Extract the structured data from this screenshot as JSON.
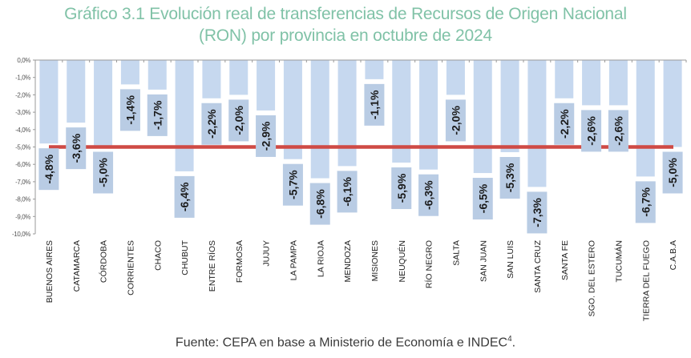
{
  "title_line1": "Gráfico 3.1 Evolución real de transferencias de Recursos de Origen Nacional",
  "title_line2": "(RON) por provincia en octubre de 2024",
  "source_text": "Fuente: CEPA en base a Ministerio de Economía e INDEC",
  "source_sup": "4",
  "source_end": ".",
  "colors": {
    "title": "#80c2a7",
    "bar": "#c6d8ef",
    "label_box": "#b9cce4",
    "reference_line": "#cf4a45",
    "axis": "#999999"
  },
  "chart_data": {
    "type": "bar",
    "title": "Gráfico 3.1 Evolución real de transferencias de Recursos de Origen Nacional (RON) por provincia en octubre de 2024",
    "xlabel": "",
    "ylabel": "",
    "ylim": [
      -10,
      0
    ],
    "yticks": [
      0,
      -1,
      -2,
      -3,
      -4,
      -5,
      -6,
      -7,
      -8,
      -9,
      -10
    ],
    "ytick_labels": [
      "0,0%",
      "-1,0%",
      "-2,0%",
      "-3,0%",
      "-4,0%",
      "-5,0%",
      "-6,0%",
      "-7,0%",
      "-8,0%",
      "-9,0%",
      "-10,0%"
    ],
    "grid": false,
    "categories": [
      "BUENOS AIRES",
      "CATAMARCA",
      "CÓRDOBA",
      "CORRIENTES",
      "CHACO",
      "CHUBUT",
      "ENTRE RÍOS",
      "FORMOSA",
      "JUJUY",
      "LA PAMPA",
      "LA RIOJA",
      "MENDOZA",
      "MISIONES",
      "NEUQUÉN",
      "RÍO NEGRO",
      "SALTA",
      "SAN JUAN",
      "SAN LUIS",
      "SANTA CRUZ",
      "SANTA FE",
      "SGO. DEL ESTERO",
      "TUCUMÁN",
      "TIERRA DEL FUEGO",
      "C.A.B.A"
    ],
    "values": [
      -4.8,
      -3.6,
      -5.0,
      -1.4,
      -1.7,
      -6.4,
      -2.2,
      -2.0,
      -2.9,
      -5.7,
      -6.8,
      -6.1,
      -1.1,
      -5.9,
      -6.3,
      -2.0,
      -6.5,
      -5.3,
      -7.3,
      -2.2,
      -2.6,
      -2.6,
      -6.7,
      -5.0
    ],
    "data_labels": [
      "-4,8%",
      "-3,6%",
      "-5,0%",
      "-1,4%",
      "-1,7%",
      "-6,4%",
      "-2,2%",
      "-2,0%",
      "-2,9%",
      "-5,7%",
      "-6,8%",
      "-6,1%",
      "-1,1%",
      "-5,9%",
      "-6,3%",
      "-2,0%",
      "-6,5%",
      "-5,3%",
      "-7,3%",
      "-2,2%",
      "-2,6%",
      "-2,6%",
      "-6,7%",
      "-5,0%"
    ],
    "reference_line": {
      "value": -5.0,
      "label": ""
    }
  }
}
